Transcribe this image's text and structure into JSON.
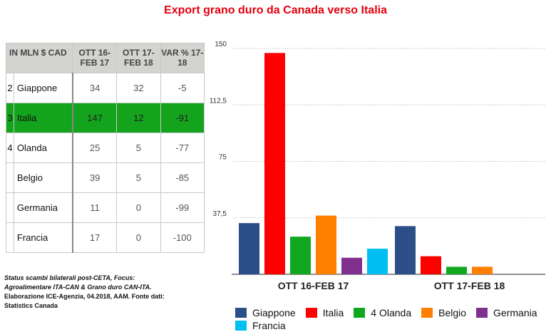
{
  "title": "Export grano duro da Canada verso Italia",
  "table": {
    "headers": [
      "IN MLN $ CAD",
      "OTT 16-FEB 17",
      "OTT 17-FEB 18",
      "VAR % 17-18"
    ],
    "rows": [
      {
        "rank": "2",
        "name": "Giappone",
        "v1": "34",
        "v2": "32",
        "var": "-5",
        "highlight": false
      },
      {
        "rank": "3",
        "name": "Italia",
        "v1": "147",
        "v2": "12",
        "var": "-91",
        "highlight": true
      },
      {
        "rank": "4",
        "name": "Olanda",
        "v1": "25",
        "v2": "5",
        "var": "-77",
        "highlight": false
      },
      {
        "rank": "",
        "name": "Belgio",
        "v1": "39",
        "v2": "5",
        "var": "-85",
        "highlight": false
      },
      {
        "rank": "",
        "name": "Germania",
        "v1": "11",
        "v2": "0",
        "var": "-99",
        "highlight": false
      },
      {
        "rank": "",
        "name": "Francia",
        "v1": "17",
        "v2": "0",
        "var": "-100",
        "highlight": false
      }
    ],
    "highlight_color": "#13a31c"
  },
  "note": {
    "line1": "Status scambi bilaterali post-CETA, Focus:",
    "line2": "Agroalimentare ITA-CAN & Grano duro CAN-ITA.",
    "line3": "Elaborazione ICE-Agenzia, 04.2018, AAM. Fonte dati:",
    "line4": "Statistics Canada"
  },
  "chart_data": {
    "type": "bar",
    "categories": [
      "OTT 16-FEB 17",
      "OTT 17-FEB 18"
    ],
    "series": [
      {
        "name": "Giappone",
        "values": [
          34,
          32
        ],
        "color": "#2c4f8a"
      },
      {
        "name": "Italia",
        "values": [
          147,
          12
        ],
        "color": "#ff0000"
      },
      {
        "name": "4 Olanda",
        "values": [
          25,
          5
        ],
        "color": "#11a820"
      },
      {
        "name": "Belgio",
        "values": [
          39,
          5
        ],
        "color": "#ff7f00"
      },
      {
        "name": "Germania",
        "values": [
          11,
          0
        ],
        "color": "#7f2f8e"
      },
      {
        "name": "Francia",
        "values": [
          17,
          0
        ],
        "color": "#00bff3"
      }
    ],
    "yticks": [
      "150",
      "112,5",
      "75",
      "37,5"
    ],
    "ytick_values": [
      150,
      112.5,
      75,
      37.5
    ],
    "ylim": [
      0,
      150
    ],
    "grid": "dotted",
    "legend_position": "bottom"
  }
}
